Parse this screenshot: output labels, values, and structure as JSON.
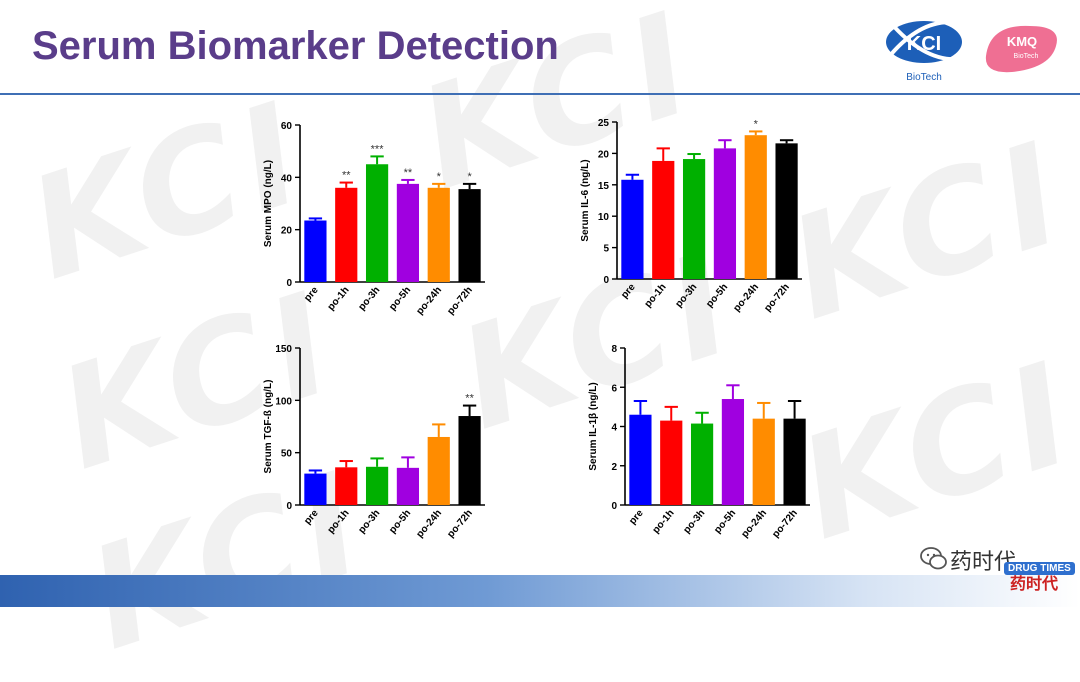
{
  "title": "Serum Biomarker Detection",
  "logos": {
    "kci_main": "KCI",
    "kci_sub": "BioTech",
    "kmq_main": "KMQ",
    "kmq_sub": "BioTech"
  },
  "watermark_text": "KCI",
  "footer": {
    "wechat_name": "药时代",
    "badge": "DRUG TIMES",
    "brand_sub": "药时代"
  },
  "colors": {
    "title": "#5a3d8a",
    "rule": "#3f6fb5",
    "bars": [
      "#0000ff",
      "#ff0000",
      "#00b000",
      "#a000e0",
      "#ff8c00",
      "#000000"
    ]
  },
  "chart_data": [
    {
      "type": "bar",
      "ylabel": "Serum MPO (ng/L)",
      "categories": [
        "pre",
        "po-1h",
        "po-3h",
        "po-5h",
        "po-24h",
        "po-72h"
      ],
      "values": [
        23.5,
        36,
        45,
        37.5,
        36,
        35.5
      ],
      "errors": [
        0.8,
        2,
        3,
        1.5,
        1.5,
        2
      ],
      "annotations": [
        "",
        "**",
        "***",
        "**",
        "*",
        "*"
      ],
      "ylim": [
        0,
        60
      ],
      "yticks": [
        0,
        20,
        40,
        60
      ]
    },
    {
      "type": "bar",
      "ylabel": "Serum  IL-6 (ng/L)",
      "categories": [
        "pre",
        "po-1h",
        "po-3h",
        "po-5h",
        "po-24h",
        "po-72h"
      ],
      "values": [
        15.8,
        18.8,
        19.1,
        20.8,
        22.9,
        21.6
      ],
      "errors": [
        0.8,
        2.0,
        0.8,
        1.3,
        0.6,
        0.5
      ],
      "annotations": [
        "",
        "",
        "",
        "",
        "*",
        ""
      ],
      "ylim": [
        0,
        25
      ],
      "yticks": [
        0,
        5,
        10,
        15,
        20,
        25
      ]
    },
    {
      "type": "bar",
      "ylabel": "Serum TGF-ß (ng/L)",
      "categories": [
        "pre",
        "po-1h",
        "po-3h",
        "po-5h",
        "po-24h",
        "po-72h"
      ],
      "values": [
        30,
        36,
        36.5,
        35.5,
        65,
        85
      ],
      "errors": [
        3,
        6,
        8,
        10,
        12,
        10
      ],
      "annotations": [
        "",
        "",
        "",
        "",
        "",
        "**"
      ],
      "ylim": [
        0,
        150
      ],
      "yticks": [
        0,
        50,
        100,
        150
      ]
    },
    {
      "type": "bar",
      "ylabel": "Serum IL-1β (ng/L)",
      "categories": [
        "pre",
        "po-1h",
        "po-3h",
        "po-5h",
        "po-24h",
        "po-72h"
      ],
      "values": [
        4.6,
        4.3,
        4.15,
        5.4,
        4.4,
        4.4
      ],
      "errors": [
        0.7,
        0.7,
        0.55,
        0.7,
        0.8,
        0.9
      ],
      "annotations": [
        "",
        "",
        "",
        "",
        "",
        ""
      ],
      "ylim": [
        0,
        8
      ],
      "yticks": [
        0,
        2,
        4,
        6,
        8
      ]
    }
  ]
}
